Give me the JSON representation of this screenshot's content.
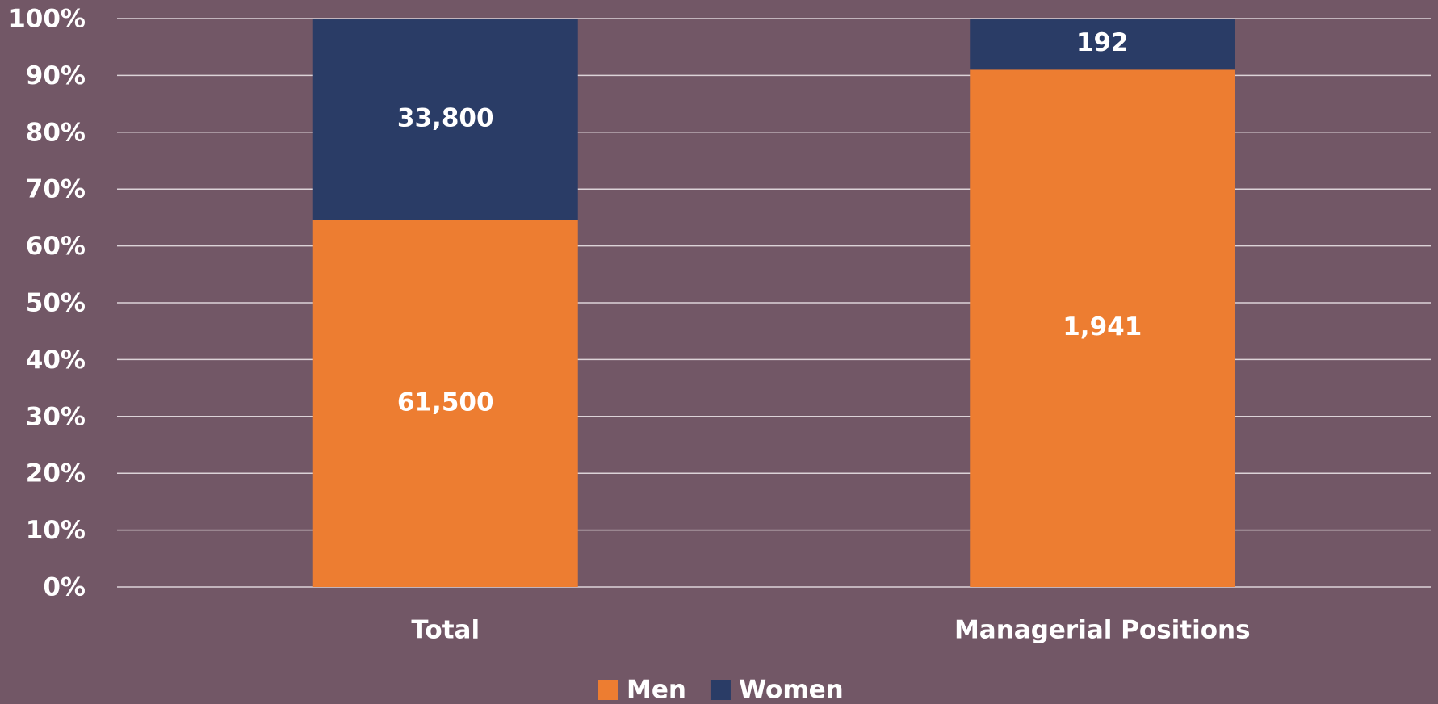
{
  "chart_data": {
    "type": "bar",
    "stacking": "percent",
    "categories": [
      "Total",
      "Managerial Positions"
    ],
    "series": [
      {
        "name": "Men",
        "color": "#ed7d31",
        "values": [
          61500,
          1941
        ],
        "value_labels": [
          "61,500",
          "1,941"
        ]
      },
      {
        "name": "Women",
        "color": "#2a3c66",
        "values": [
          33800,
          192
        ],
        "value_labels": [
          "33,800",
          "192"
        ]
      }
    ],
    "ylim": [
      0,
      100
    ],
    "yticks": [
      {
        "value": 0,
        "label": "0%"
      },
      {
        "value": 10,
        "label": "10%"
      },
      {
        "value": 20,
        "label": "20%"
      },
      {
        "value": 30,
        "label": "30%"
      },
      {
        "value": 40,
        "label": "40%"
      },
      {
        "value": 50,
        "label": "50%"
      },
      {
        "value": 60,
        "label": "60%"
      },
      {
        "value": 70,
        "label": "70%"
      },
      {
        "value": 80,
        "label": "80%"
      },
      {
        "value": 90,
        "label": "90%"
      },
      {
        "value": 100,
        "label": "100%"
      }
    ],
    "grid": true,
    "legend": "bottom"
  }
}
